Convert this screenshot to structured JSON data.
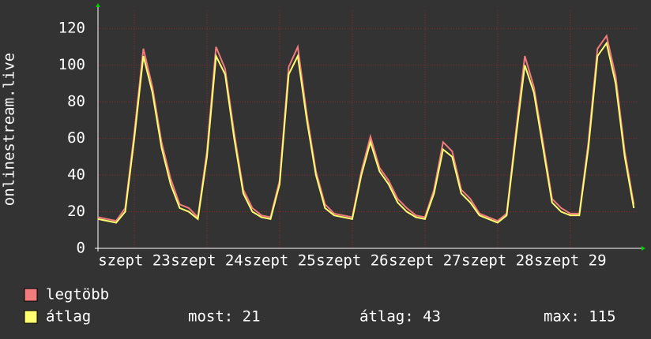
{
  "chart_data": {
    "type": "line",
    "y_label": "onlinestream.live",
    "x": [
      0,
      3,
      6,
      9,
      12,
      15,
      18,
      21,
      24,
      27,
      30,
      33,
      36,
      39,
      42,
      45,
      48,
      51,
      54,
      57,
      60,
      63,
      66,
      69,
      72,
      75,
      78,
      81,
      84,
      87,
      90,
      93,
      96,
      99,
      102,
      105,
      108,
      111,
      114,
      117,
      120,
      123,
      126,
      129,
      132,
      135,
      138,
      141,
      144,
      147,
      150,
      153,
      156,
      159,
      162,
      165,
      168,
      171,
      174,
      177
    ],
    "xlim": [
      0,
      178.5
    ],
    "xticks": [
      {
        "value": 12,
        "label": "szept 23"
      },
      {
        "value": 36,
        "label": "szept 24"
      },
      {
        "value": 60,
        "label": "szept 25"
      },
      {
        "value": 84,
        "label": "szept 26"
      },
      {
        "value": 108,
        "label": "szept 27"
      },
      {
        "value": 132,
        "label": "szept 28"
      },
      {
        "value": 156,
        "label": "szept 29"
      }
    ],
    "ylim": [
      0,
      130
    ],
    "yticks": [
      0,
      20,
      40,
      60,
      80,
      100,
      120
    ],
    "grid": true,
    "series": [
      {
        "name": "legtöbb",
        "color": "#f27b7b",
        "values": [
          17,
          16,
          15,
          22,
          63,
          109,
          88,
          58,
          38,
          24,
          22,
          17,
          53,
          110,
          98,
          63,
          32,
          22,
          18,
          17,
          37,
          99,
          110,
          73,
          42,
          24,
          19,
          18,
          17,
          42,
          61,
          44,
          37,
          27,
          22,
          18,
          17,
          32,
          58,
          53,
          32,
          27,
          19,
          17,
          15,
          19,
          63,
          105,
          88,
          58,
          27,
          22,
          19,
          19,
          58,
          109,
          116,
          94,
          53,
          24
        ]
      },
      {
        "name": "átlag",
        "color": "#ffff70",
        "values": [
          16,
          15,
          14,
          20,
          60,
          105,
          85,
          55,
          35,
          22,
          20,
          16,
          50,
          105,
          95,
          60,
          30,
          20,
          17,
          16,
          35,
          95,
          105,
          70,
          40,
          22,
          18,
          17,
          16,
          40,
          58,
          42,
          35,
          25,
          20,
          17,
          16,
          30,
          54,
          50,
          30,
          25,
          18,
          16,
          14,
          18,
          60,
          100,
          85,
          55,
          25,
          20,
          18,
          18,
          55,
          105,
          112,
          90,
          50,
          22
        ]
      }
    ],
    "stats": {
      "most": "most: 21",
      "atlag": "átlag: 43",
      "max": "max: 115"
    }
  }
}
